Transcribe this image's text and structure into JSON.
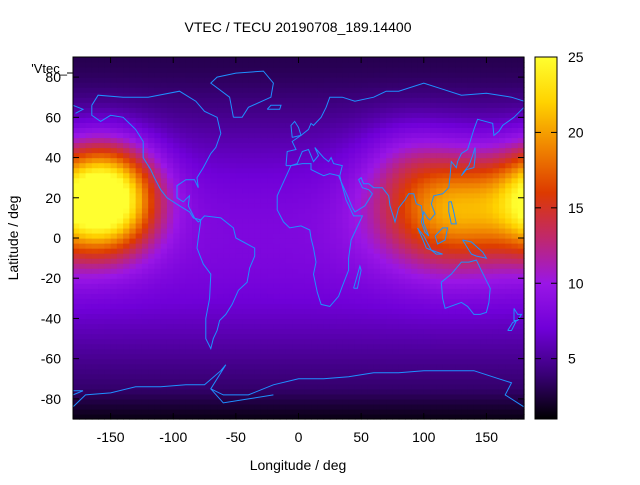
{
  "chart_data": {
    "type": "heatmap",
    "title": "VTEC / TECU 20190708_189.14400",
    "xlabel": "Longitude / deg",
    "ylabel": "Latitude / deg",
    "series_label": "'Vtec_",
    "xlim": [
      -180,
      180
    ],
    "ylim": [
      -90,
      90
    ],
    "x_ticks": [
      -150,
      -100,
      -50,
      0,
      50,
      100,
      150
    ],
    "y_ticks": [
      -80,
      -60,
      -40,
      -20,
      0,
      20,
      40,
      60,
      80
    ],
    "colorbar": {
      "range": [
        1,
        25
      ],
      "ticks": [
        5,
        10,
        15,
        20,
        25
      ],
      "palette": [
        "#000000",
        "#3a0078",
        "#7000d8",
        "#9a16e6",
        "#c0286c",
        "#dd3a00",
        "#f08500",
        "#ffd200",
        "#ffff30"
      ]
    },
    "coastline_color": "#1e90ff",
    "peaks": [
      {
        "lon": -155,
        "lat": 20,
        "vtec": 24,
        "sx": 28,
        "sy": 18
      },
      {
        "lon": 125,
        "lat": 15,
        "vtec": 16,
        "sx": 42,
        "sy": 20
      },
      {
        "lon": 85,
        "lat": 40,
        "vtec": 5,
        "sx": 25,
        "sy": 15
      }
    ],
    "background_vtec": {
      "equator": 8,
      "pole": 3
    }
  }
}
